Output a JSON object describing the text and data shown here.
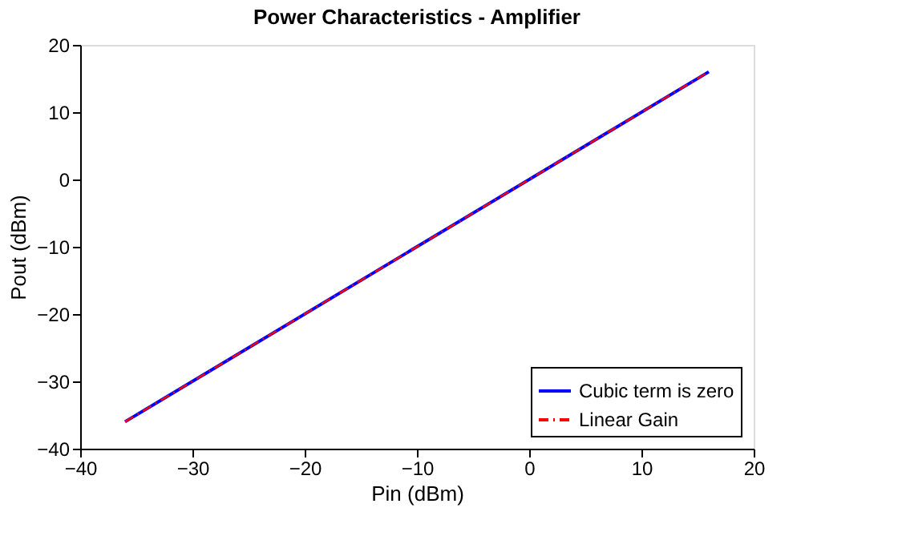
{
  "chart_data": {
    "type": "line",
    "title": "Power Characteristics - Amplifier",
    "xlabel": "Pin (dBm)",
    "ylabel": "Pout (dBm)",
    "x": [
      -36,
      16
    ],
    "series": [
      {
        "name": "Cubic term is zero",
        "color": "#0000ff",
        "values": [
          -36,
          16
        ],
        "line_style": "solid"
      },
      {
        "name": "Linear Gain",
        "color": "#ff0000",
        "values": [
          -36,
          16
        ],
        "line_style": "dashdot"
      }
    ],
    "xlim": [
      -40,
      20
    ],
    "xticks": [
      -40,
      -30,
      -20,
      -10,
      0,
      10,
      20
    ],
    "ylim": [
      -40,
      20
    ],
    "yticks": [
      -40,
      -30,
      -20,
      -10,
      0,
      10,
      20
    ],
    "grid": false,
    "legend": "bottom right",
    "marker": "none"
  }
}
